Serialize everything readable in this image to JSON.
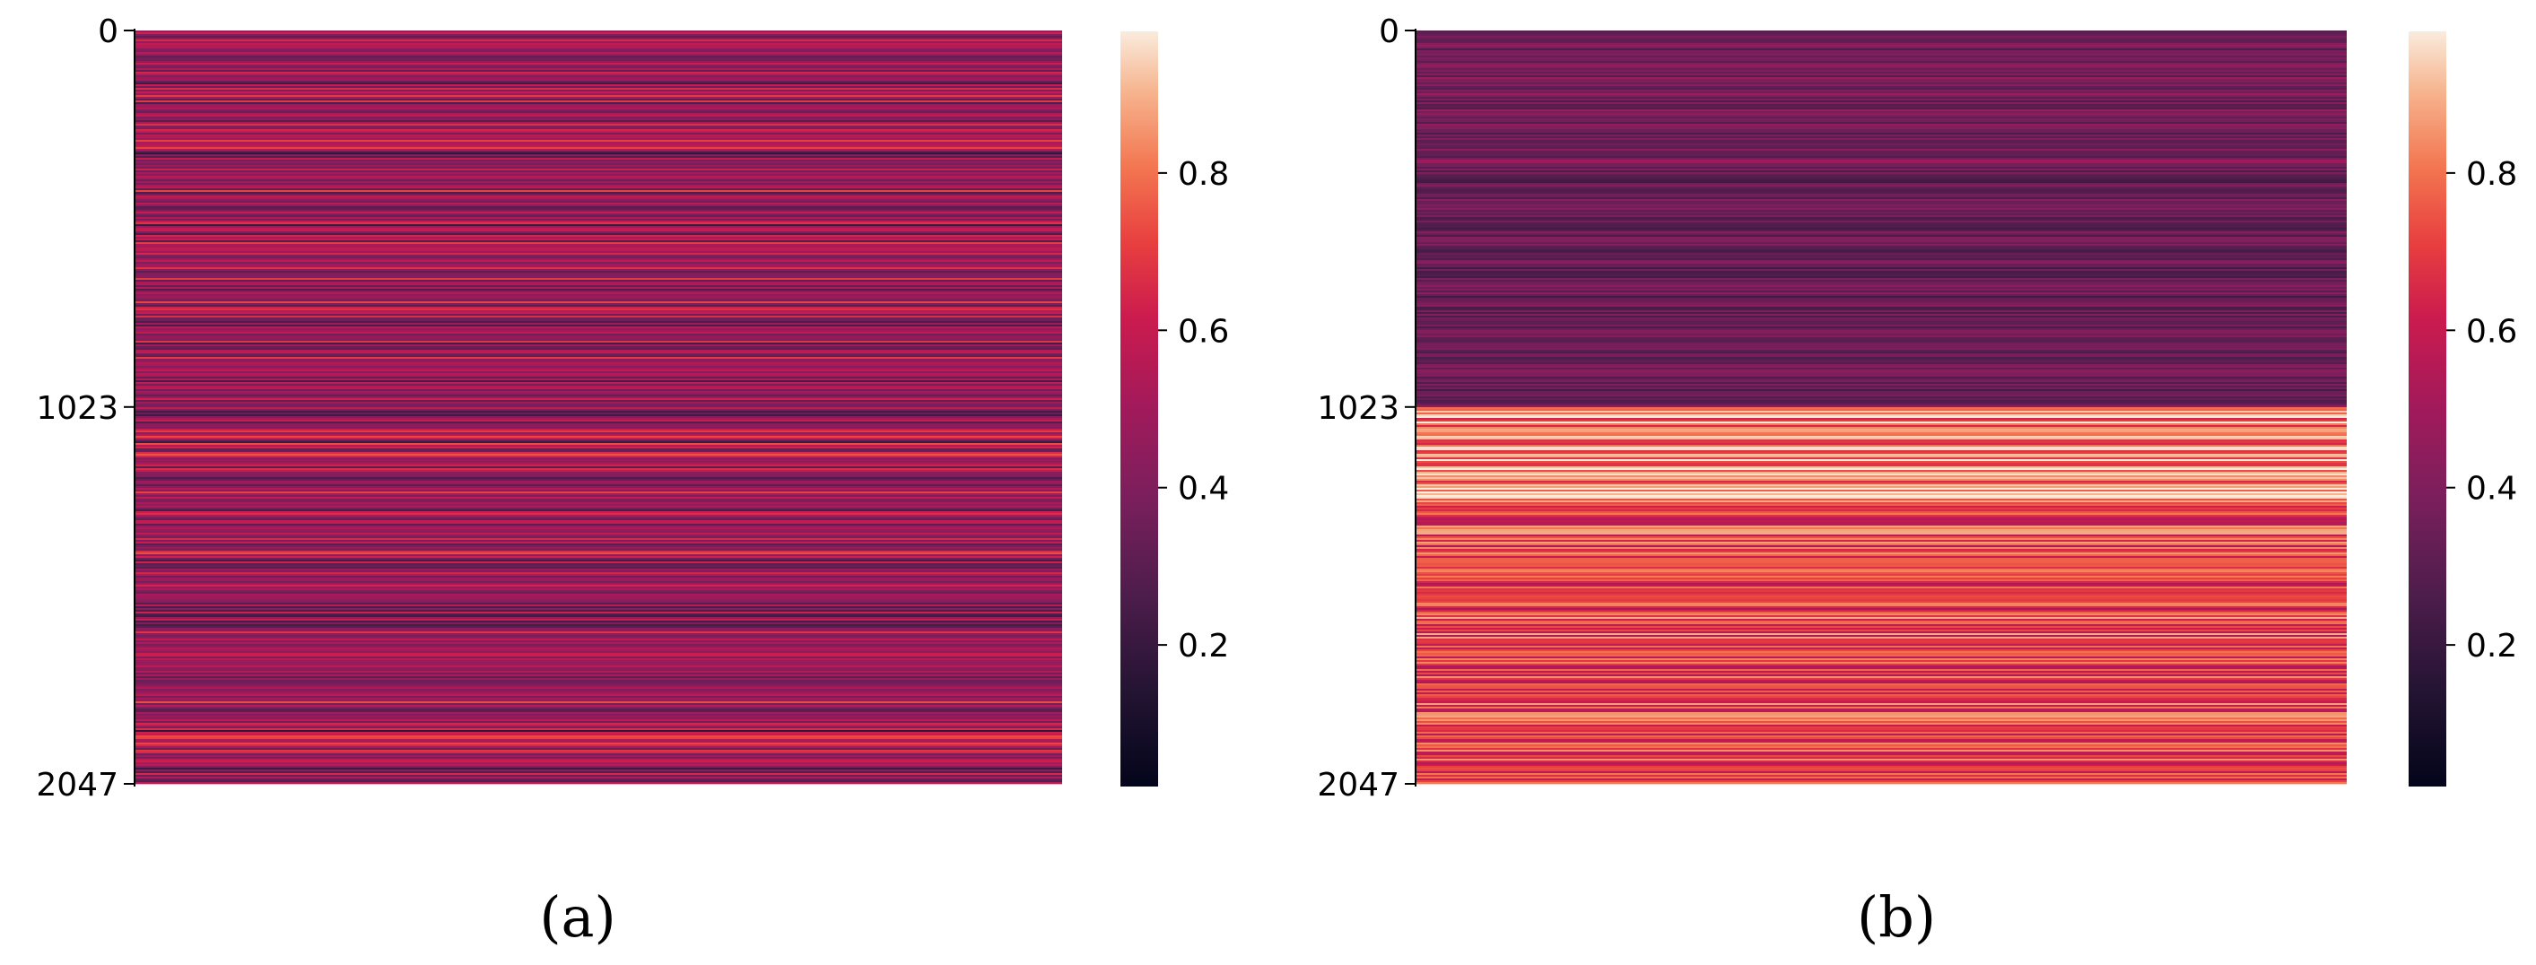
{
  "chart_data": [
    {
      "type": "heatmap",
      "panel_label": "(a)",
      "n_rows": 2048,
      "yticks": [
        0,
        1023,
        2047
      ],
      "ytick_labels": [
        "0",
        "1023",
        "2047"
      ],
      "colorbar_ticks": [
        0.2,
        0.4,
        0.6,
        0.8
      ],
      "colorbar_labels": [
        "0.2",
        "0.4",
        "0.6",
        "0.8"
      ],
      "colorbar_range": [
        0.02,
        0.98
      ],
      "colormap": "rocket",
      "row_profile": {
        "description": "per-row values constant across columns; values fluctuate roughly uniformly in [0.1, 0.85] for all rows",
        "mean": 0.45,
        "low": 0.1,
        "high": 0.85
      }
    },
    {
      "type": "heatmap",
      "panel_label": "(b)",
      "n_rows": 2048,
      "yticks": [
        0,
        1023,
        2047
      ],
      "ytick_labels": [
        "0",
        "1023",
        "2047"
      ],
      "colorbar_ticks": [
        0.2,
        0.4,
        0.6,
        0.8
      ],
      "colorbar_labels": [
        "0.2",
        "0.4",
        "0.6",
        "0.8"
      ],
      "colorbar_range": [
        0.02,
        0.98
      ],
      "colormap": "rocket",
      "row_profile": {
        "description": "rows 0-1023 mostly low values (~0.25-0.45), rows 1024-2047 mostly high values (~0.55-0.95)",
        "upper_half_mean": 0.33,
        "lower_half_mean": 0.72
      }
    }
  ]
}
